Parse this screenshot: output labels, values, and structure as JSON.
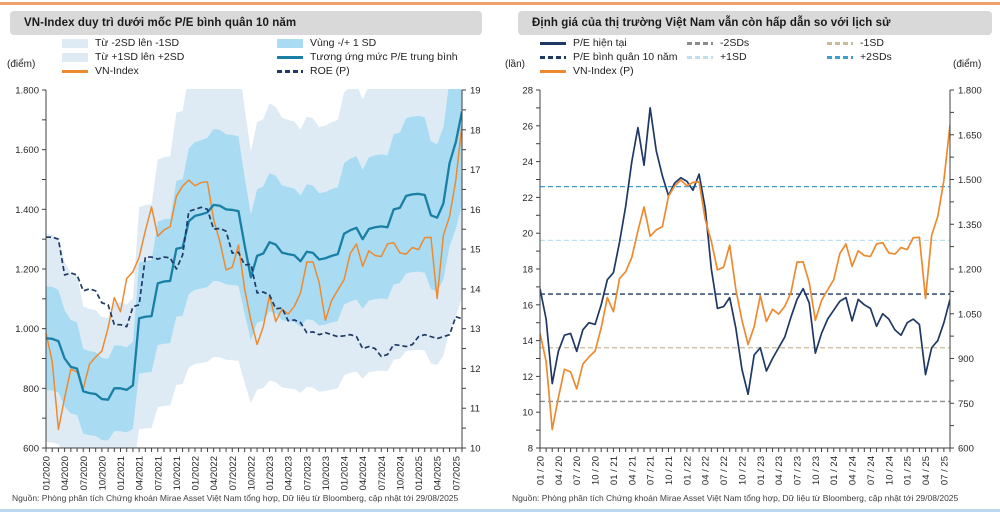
{
  "page": {
    "top_border_color": "#EFA26C",
    "bottom_border_color": "#BDD7EE",
    "titlebar_bg": "#D9D9D9"
  },
  "chart_data": [
    {
      "type": "line",
      "title": "VN-Index duy trì dưới mốc P/E bình quân 10 năm",
      "source": "Nguồn: Phòng phân tích Chứng khoán Mirae Asset Việt Nam tổng hợp,  Dữ liệu từ Bloomberg, cập nhật tới 29/08/2025",
      "left_axis": {
        "label": "(điểm)",
        "min": 600,
        "max": 1800,
        "step": 200,
        "format": "dot"
      },
      "right_axis": {
        "label": "",
        "min": 10,
        "max": 19,
        "step": 1,
        "format": "plain"
      },
      "x_labels": [
        "01/2020",
        "04/2020",
        "07/2020",
        "10/2020",
        "01/2021",
        "04/2021",
        "07/2021",
        "10/2021",
        "01/2022",
        "04/2022",
        "07/2022",
        "10/2022",
        "01/2023",
        "04/2023",
        "07/2023",
        "10/2023",
        "01/2024",
        "04/2024",
        "07/2024",
        "10/2024",
        "01/2025",
        "04/2025",
        "07/2025"
      ],
      "x_label_every": 3,
      "bands": {
        "base_series": 1,
        "sd_ratio": 0.18,
        "inner_color": "#A9DCF2",
        "outer_color": "#DEEBF5",
        "inner_name": "Vùng -/+ 1 SD",
        "outer_lower_name": "Từ -2SD lên -1SD",
        "outer_upper_name": "Từ +1SD lên +2SD"
      },
      "series": [
        {
          "name": "VN-Index",
          "axis": "left",
          "color": "#ED8A30",
          "width": 1.5,
          "values": [
            985,
            890,
            662,
            769,
            864,
            855,
            798,
            881,
            905,
            925,
            1003,
            1104,
            1057,
            1168,
            1191,
            1239,
            1328,
            1408,
            1310,
            1331,
            1342,
            1444,
            1478,
            1498,
            1479,
            1490,
            1492,
            1366,
            1292,
            1197,
            1206,
            1280,
            1132,
            1028,
            947,
            1007,
            1111,
            1024,
            1065,
            1049,
            1075,
            1120,
            1223,
            1224,
            1154,
            1028,
            1094,
            1130,
            1164,
            1252,
            1284,
            1209,
            1261,
            1245,
            1242,
            1284,
            1288,
            1254,
            1250,
            1272,
            1265,
            1305,
            1306,
            1101,
            1313,
            1376,
            1497,
            1682
          ]
        },
        {
          "name": "Tương ứng mức P/E trung bình",
          "axis": "left",
          "color": "#1A7FA5",
          "width": 2.3,
          "values": [
            968,
            966,
            958,
            900,
            872,
            866,
            790,
            784,
            781,
            764,
            762,
            800,
            800,
            795,
            810,
            1035,
            1040,
            1042,
            1152,
            1158,
            1160,
            1268,
            1272,
            1360,
            1378,
            1383,
            1390,
            1415,
            1412,
            1400,
            1398,
            1394,
            1278,
            1172,
            1244,
            1252,
            1290,
            1282,
            1255,
            1250,
            1246,
            1226,
            1258,
            1254,
            1232,
            1236,
            1244,
            1250,
            1318,
            1330,
            1338,
            1300,
            1334,
            1340,
            1343,
            1340,
            1400,
            1405,
            1445,
            1450,
            1452,
            1448,
            1380,
            1372,
            1420,
            1555,
            1625,
            1728
          ]
        },
        {
          "name": "ROE (P)",
          "axis": "right",
          "color": "#1F3864",
          "width": 1.7,
          "dash": "5,3",
          "values": [
            15.3,
            15.3,
            15.25,
            14.35,
            14.4,
            14.35,
            13.95,
            14.0,
            13.95,
            13.65,
            13.6,
            13.1,
            13.1,
            13.05,
            13.55,
            13.6,
            14.8,
            14.8,
            14.75,
            14.8,
            14.78,
            14.5,
            14.85,
            15.95,
            16.0,
            16.05,
            16.0,
            15.5,
            15.52,
            15.45,
            14.9,
            14.92,
            14.6,
            14.62,
            13.9,
            13.92,
            13.85,
            13.5,
            13.52,
            13.2,
            13.22,
            13.15,
            12.9,
            12.92,
            12.85,
            12.9,
            12.85,
            12.8,
            12.82,
            12.85,
            12.8,
            12.5,
            12.55,
            12.5,
            12.3,
            12.35,
            12.6,
            12.58,
            12.55,
            12.6,
            12.8,
            12.85,
            12.8,
            12.75,
            12.8,
            12.85,
            13.3,
            13.25
          ]
        }
      ],
      "legend_cols": [
        [
          {
            "label": "Từ -2SD lên -1SD",
            "swatch": "area",
            "color": "#DEEBF5"
          },
          {
            "label": "Từ +1SD lên +2SD",
            "swatch": "area",
            "color": "#DEEBF5"
          },
          {
            "label": "VN-Index",
            "swatch": "line",
            "color": "#ED8A30"
          }
        ],
        [
          {
            "label": "Vùng -/+ 1 SD",
            "swatch": "area",
            "color": "#A9DCF2"
          },
          {
            "label": "Tương ứng mức P/E trung bình",
            "swatch": "line",
            "color": "#1A7FA5"
          },
          {
            "label": "ROE (P)",
            "swatch": "dash",
            "color": "#1F3864"
          }
        ]
      ]
    },
    {
      "type": "line",
      "title": "Định giá của thị trường Việt Nam vẫn còn hấp dẫn so với lịch sử",
      "source": "Nguồn: Phòng phân tích Chứng khoán Mirae Asset Việt Nam tổng hợp,  Dữ liệu từ Bloomberg, cập nhật tới 29/08/2025",
      "left_axis": {
        "label": "(lần)",
        "min": 8,
        "max": 28,
        "step": 2,
        "format": "plain"
      },
      "right_axis": {
        "label": "(điểm)",
        "min": 600,
        "max": 1800,
        "step": 150,
        "format": "dot"
      },
      "x_labels": [
        "01 / 20",
        "04 / 20",
        "07 / 20",
        "10 / 20",
        "01 / 21",
        "04 / 21",
        "07 / 21",
        "10 / 21",
        "01 / 22",
        "04 / 22",
        "07 / 22",
        "10 / 22",
        "01 / 23",
        "04 / 23",
        "07 / 23",
        "10 / 23",
        "01 / 24",
        "04 / 24",
        "07 / 24",
        "10 / 24",
        "01 / 25",
        "04 / 25",
        "07 / 25"
      ],
      "x_label_every": 3,
      "hlines": [
        {
          "name": "P/E bình quân 10 năm",
          "value": 16.6,
          "color": "#1F3864"
        },
        {
          "name": "+1SD",
          "value": 19.6,
          "color": "#BFDFEF"
        },
        {
          "name": "+2SDs",
          "value": 22.6,
          "color": "#3D9FCB"
        },
        {
          "name": "-1SD",
          "value": 13.6,
          "color": "#C9BA9B"
        },
        {
          "name": "-2SDs",
          "value": 10.6,
          "color": "#8C8C8C"
        }
      ],
      "series": [
        {
          "name": "P/E hiện tại",
          "axis": "left",
          "color": "#1F3864",
          "width": 1.7,
          "values": [
            16.9,
            15.2,
            11.6,
            13.4,
            14.3,
            14.4,
            13.4,
            14.6,
            15.0,
            14.9,
            16.0,
            17.4,
            17.8,
            19.5,
            21.5,
            24.0,
            25.9,
            23.8,
            27.0,
            24.6,
            23.2,
            22.1,
            22.8,
            23.1,
            22.9,
            22.4,
            23.3,
            21.4,
            18.0,
            15.8,
            15.9,
            16.4,
            14.7,
            12.4,
            11.0,
            13.2,
            13.6,
            12.3,
            13.0,
            13.6,
            14.2,
            15.3,
            16.3,
            16.9,
            16.1,
            13.3,
            14.4,
            15.2,
            15.7,
            16.2,
            16.4,
            15.1,
            16.3,
            16.0,
            15.8,
            14.8,
            15.5,
            15.2,
            14.6,
            14.3,
            15.0,
            15.2,
            14.9,
            12.1,
            13.6,
            14.0,
            15.0,
            16.3
          ]
        },
        {
          "name": "VN-Index (P)",
          "axis": "right",
          "color": "#ED8A30",
          "width": 1.7,
          "values": [
            985,
            890,
            662,
            769,
            864,
            855,
            798,
            881,
            905,
            925,
            1003,
            1104,
            1057,
            1168,
            1191,
            1239,
            1328,
            1408,
            1310,
            1331,
            1342,
            1444,
            1478,
            1498,
            1479,
            1490,
            1492,
            1366,
            1292,
            1197,
            1206,
            1280,
            1132,
            1028,
            947,
            1007,
            1111,
            1024,
            1065,
            1049,
            1075,
            1120,
            1223,
            1224,
            1154,
            1028,
            1094,
            1130,
            1164,
            1252,
            1284,
            1209,
            1261,
            1245,
            1242,
            1284,
            1288,
            1254,
            1250,
            1272,
            1265,
            1305,
            1306,
            1101,
            1313,
            1376,
            1497,
            1682
          ]
        }
      ],
      "legend_cols": [
        [
          {
            "label": "P/E hiện tại",
            "swatch": "line",
            "color": "#1F3864"
          },
          {
            "label": "P/E bình quân 10 năm",
            "swatch": "dash",
            "color": "#1F3864"
          },
          {
            "label": "VN-Index (P)",
            "swatch": "line",
            "color": "#ED8A30"
          }
        ],
        [
          {
            "label": "-2SDs",
            "swatch": "dash",
            "color": "#8C8C8C"
          },
          {
            "label": "+1SD",
            "swatch": "dash",
            "color": "#BFDFEF"
          }
        ],
        [
          {
            "label": "-1SD",
            "swatch": "dash",
            "color": "#C9BA9B"
          },
          {
            "label": "+2SDs",
            "swatch": "dash",
            "color": "#3D9FCB"
          }
        ]
      ]
    }
  ]
}
